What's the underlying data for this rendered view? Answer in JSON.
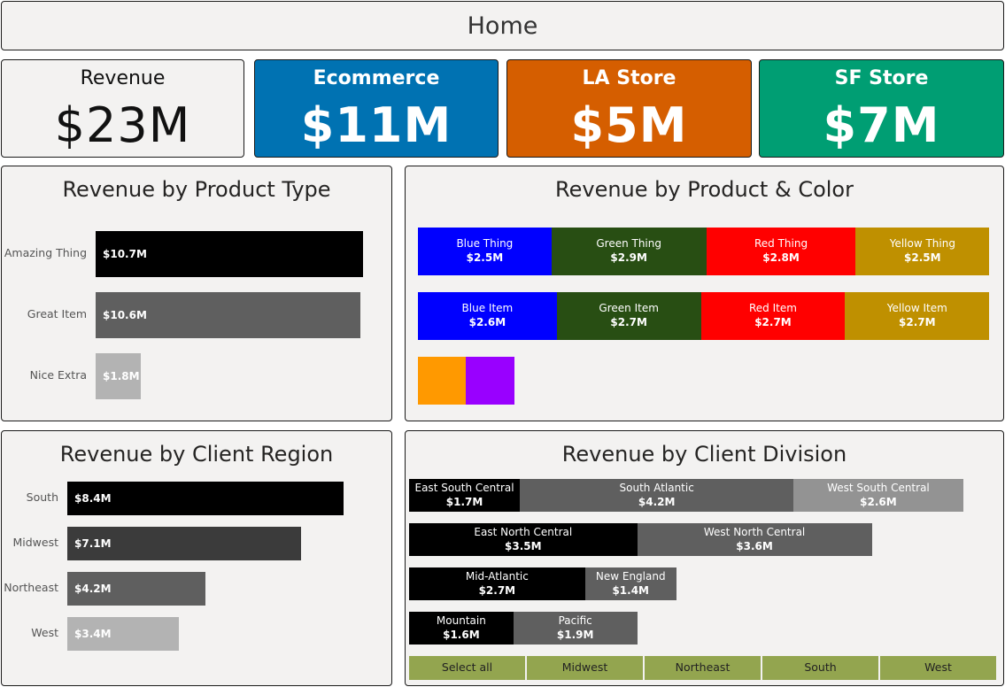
{
  "header": {
    "title": "Home"
  },
  "kpis": {
    "revenue": {
      "label": "Revenue",
      "value": "$23M"
    },
    "ecommerce": {
      "label": "Ecommerce",
      "value": "$11M",
      "color": "#0072b2"
    },
    "la_store": {
      "label": "LA Store",
      "value": "$5M",
      "color": "#d55e00"
    },
    "sf_store": {
      "label": "SF Store",
      "value": "$7M",
      "color": "#009e73"
    }
  },
  "chart_data": [
    {
      "type": "bar",
      "orientation": "horizontal",
      "title": "Revenue by Product Type",
      "categories": [
        "Amazing Thing",
        "Great Item",
        "Nice Extra"
      ],
      "values": [
        10.7,
        10.6,
        1.8
      ],
      "data_labels": [
        "$10.7M",
        "$10.6M",
        "$1.8M"
      ],
      "colors": [
        "#000000",
        "#5f5f5f",
        "#b3b3b3"
      ]
    },
    {
      "type": "bar",
      "orientation": "horizontal",
      "stacked": true,
      "title": "Revenue by Product & Color",
      "rows": [
        {
          "segments": [
            {
              "name": "Blue Thing",
              "label": "$2.5M",
              "value": 2.5,
              "color": "#0000ff"
            },
            {
              "name": "Green Thing",
              "label": "$2.9M",
              "value": 2.9,
              "color": "#284e13"
            },
            {
              "name": "Red Thing",
              "label": "$2.8M",
              "value": 2.8,
              "color": "#ff0000"
            },
            {
              "name": "Yellow Thing",
              "label": "$2.5M",
              "value": 2.5,
              "color": "#bf9000"
            }
          ]
        },
        {
          "segments": [
            {
              "name": "Blue Item",
              "label": "$2.6M",
              "value": 2.6,
              "color": "#0000ff"
            },
            {
              "name": "Green Item",
              "label": "$2.7M",
              "value": 2.7,
              "color": "#284e13"
            },
            {
              "name": "Red Item",
              "label": "$2.7M",
              "value": 2.7,
              "color": "#ff0000"
            },
            {
              "name": "Yellow Item",
              "label": "$2.7M",
              "value": 2.7,
              "color": "#bf9000"
            }
          ]
        },
        {
          "segments": [
            {
              "name": "",
              "label": "",
              "value": 0.9,
              "color": "#ff9900"
            },
            {
              "name": "",
              "label": "",
              "value": 0.9,
              "color": "#9900ff"
            }
          ]
        }
      ]
    },
    {
      "type": "bar",
      "orientation": "horizontal",
      "title": "Revenue by Client Region",
      "categories": [
        "South",
        "Midwest",
        "Northeast",
        "West"
      ],
      "values": [
        8.4,
        7.1,
        4.2,
        3.4
      ],
      "data_labels": [
        "$8.4M",
        "$7.1M",
        "$4.2M",
        "$3.4M"
      ],
      "colors": [
        "#000000",
        "#3b3b3b",
        "#5f5f5f",
        "#b3b3b3"
      ]
    },
    {
      "type": "bar",
      "orientation": "horizontal",
      "stacked": true,
      "title": "Revenue by Client Division",
      "rows": [
        {
          "segments": [
            {
              "name": "East South Central",
              "label": "$1.7M",
              "value": 1.7,
              "color": "#000000"
            },
            {
              "name": "South Atlantic",
              "label": "$4.2M",
              "value": 4.2,
              "color": "#5f5f5f"
            },
            {
              "name": "West South Central",
              "label": "$2.6M",
              "value": 2.6,
              "color": "#939393"
            }
          ]
        },
        {
          "segments": [
            {
              "name": "East North Central",
              "label": "$3.5M",
              "value": 3.5,
              "color": "#000000"
            },
            {
              "name": "West North Central",
              "label": "$3.6M",
              "value": 3.6,
              "color": "#5f5f5f"
            }
          ]
        },
        {
          "segments": [
            {
              "name": "Mid-Atlantic",
              "label": "$2.7M",
              "value": 2.7,
              "color": "#000000"
            },
            {
              "name": "New England",
              "label": "$1.4M",
              "value": 1.4,
              "color": "#5f5f5f"
            }
          ]
        },
        {
          "segments": [
            {
              "name": "Mountain",
              "label": "$1.6M",
              "value": 1.6,
              "color": "#000000"
            },
            {
              "name": "Pacific",
              "label": "$1.9M",
              "value": 1.9,
              "color": "#5f5f5f"
            }
          ]
        }
      ]
    }
  ],
  "region_slicer": {
    "options": [
      "Select all",
      "Midwest",
      "Northeast",
      "South",
      "West"
    ],
    "color": "#93a54f"
  }
}
